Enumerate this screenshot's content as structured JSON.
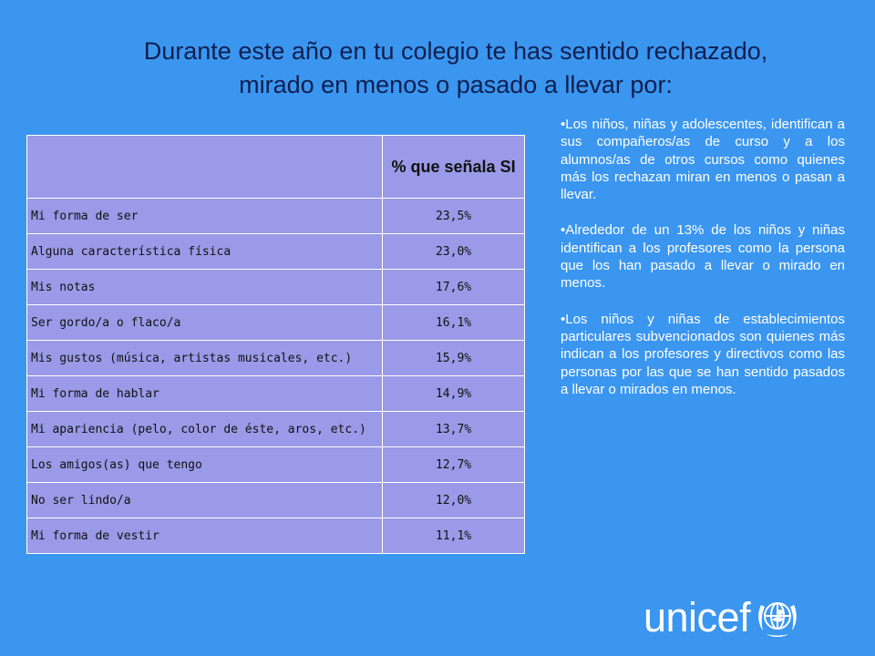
{
  "slide": {
    "title_line1": "Durante este año en tu colegio te has sentido rechazado,",
    "title_line2": "mirado en menos o pasado a llevar por:"
  },
  "table": {
    "header_value": "% que señala SI",
    "rows": [
      {
        "label": "Mi forma de ser",
        "value": "23,5%"
      },
      {
        "label": "Alguna característica física",
        "value": "23,0%"
      },
      {
        "label": "Mis notas",
        "value": "17,6%"
      },
      {
        "label": "Ser gordo/a o flaco/a",
        "value": "16,1%"
      },
      {
        "label": "Mis gustos (música, artistas musicales, etc.)",
        "value": "15,9%"
      },
      {
        "label": "Mi forma de hablar",
        "value": "14,9%"
      },
      {
        "label": "Mi apariencia (pelo, color de éste, aros, etc.)",
        "value": "13,7%"
      },
      {
        "label": "Los amigos(as) que tengo",
        "value": "12,7%"
      },
      {
        "label": "No ser lindo/a",
        "value": "12,0%"
      },
      {
        "label": "Mi forma de vestir",
        "value": "11,1%"
      }
    ]
  },
  "notes": [
    "•Los niños, niñas y adolescentes, identifican a sus compañeros/as de curso y a los alumnos/as de otros cursos como quienes más los rechazan miran en menos o pasan a llevar.",
    "•Alrededor de un 13% de los niños y niñas identifican a los profesores como la persona que los han pasado a llevar o mirado en menos.",
    "•Los niños y niñas de establecimientos particulares subvencionados son quienes más indican a los profesores y directivos como las personas por las que se han sentido pasados a llevar o mirados en menos."
  ],
  "logo": {
    "text": "unicef",
    "icon": "unicef-emblem-icon"
  }
}
